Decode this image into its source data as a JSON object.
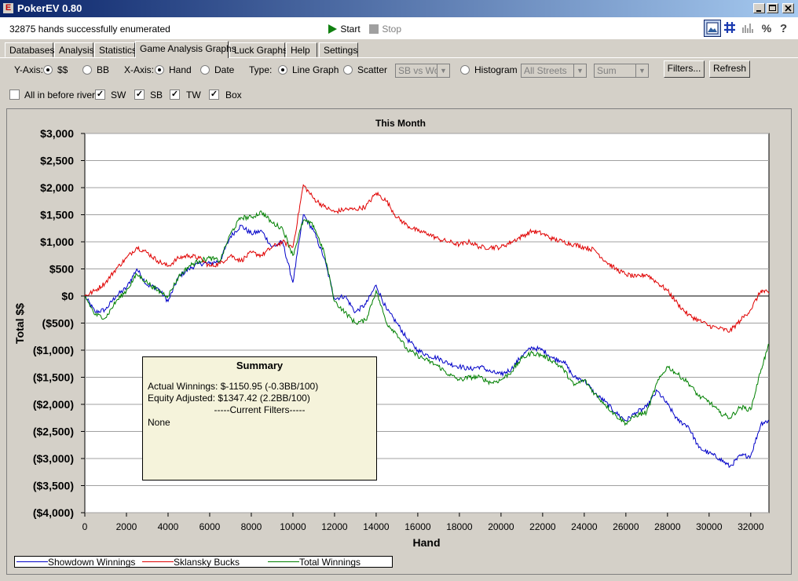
{
  "window": {
    "title": "PokerEV 0.80",
    "icon_letter": "E"
  },
  "status": {
    "message": "32875 hands successfully enumerated"
  },
  "toolbar": {
    "start_label": "Start",
    "stop_label": "Stop"
  },
  "tabs": [
    {
      "label": "Databases",
      "active": false
    },
    {
      "label": "Analysis",
      "active": false
    },
    {
      "label": "Statistics",
      "active": false
    },
    {
      "label": "Game Analysis Graphs",
      "active": true
    },
    {
      "label": "Luck Graphs",
      "active": false
    },
    {
      "label": "Help",
      "active": false
    },
    {
      "label": "Settings",
      "active": false
    }
  ],
  "controls": {
    "yaxis_label": "Y-Axis:",
    "yaxis_dollars": "$$",
    "yaxis_bb": "BB",
    "xaxis_label": "X-Axis:",
    "xaxis_hand": "Hand",
    "xaxis_date": "Date",
    "type_label": "Type:",
    "type_line": "Line Graph",
    "type_scatter": "Scatter",
    "scatter_combo": "SB vs Wo",
    "type_histogram": "Histogram",
    "streets_combo": "All Streets",
    "sum_combo": "Sum",
    "filters_button": "Filters...",
    "refresh_button": "Refresh",
    "allin_label": "All in before river",
    "sw_label": "SW",
    "sb_label": "SB",
    "tw_label": "TW",
    "box_label": "Box"
  },
  "summary": {
    "heading": "Summary",
    "actual": "Actual Winnings: $-1150.95 (-0.3BB/100)",
    "equity": "Equity Adjusted: $1347.42 (2.2BB/100)",
    "filters_heading": "-----Current Filters-----",
    "filters_value": "None"
  },
  "chart_data": {
    "type": "line",
    "title": "This Month",
    "xlabel": "Hand",
    "ylabel": "Total $$",
    "xlim": [
      0,
      32875
    ],
    "ylim": [
      -4000,
      3000
    ],
    "x_ticks": [
      0,
      2000,
      4000,
      6000,
      8000,
      10000,
      12000,
      14000,
      16000,
      18000,
      20000,
      22000,
      24000,
      26000,
      28000,
      30000,
      32000
    ],
    "y_ticks": [
      3000,
      2500,
      2000,
      1500,
      1000,
      500,
      0,
      -500,
      -1000,
      -1500,
      -2000,
      -2500,
      -3000,
      -3500,
      -4000
    ],
    "y_tick_labels": [
      "$3,000",
      "$2,500",
      "$2,000",
      "$1,500",
      "$1,000",
      "$500",
      "$0",
      "($500)",
      "($1,000)",
      "($1,500)",
      "($2,000)",
      "($2,500)",
      "($3,000)",
      "($3,500)",
      "($4,000)"
    ],
    "grid": true,
    "legend_position": "bottom",
    "series": [
      {
        "name": "Showdown Winnings",
        "color": "#0000c8",
        "x": [
          0,
          500,
          1000,
          1500,
          2000,
          2500,
          3000,
          3500,
          4000,
          4500,
          5000,
          5500,
          6000,
          6500,
          7000,
          7500,
          8000,
          8500,
          9000,
          9500,
          10000,
          10500,
          11000,
          11500,
          12000,
          12500,
          13000,
          13500,
          14000,
          14500,
          15000,
          15500,
          16000,
          16500,
          17000,
          17500,
          18000,
          18500,
          19000,
          19500,
          20000,
          20500,
          21000,
          21500,
          22000,
          22500,
          23000,
          23500,
          24000,
          24500,
          25000,
          25500,
          26000,
          26500,
          27000,
          27500,
          28000,
          28500,
          29000,
          29500,
          30000,
          30500,
          31000,
          31500,
          32000,
          32500,
          32875
        ],
        "y": [
          0,
          -300,
          -250,
          0,
          150,
          500,
          200,
          150,
          -100,
          350,
          500,
          600,
          600,
          650,
          1100,
          1300,
          1150,
          1200,
          900,
          1000,
          250,
          1500,
          1200,
          700,
          -50,
          0,
          -300,
          -150,
          200,
          -250,
          -500,
          -800,
          -1000,
          -1100,
          -1150,
          -1250,
          -1300,
          -1350,
          -1300,
          -1400,
          -1450,
          -1350,
          -1100,
          -950,
          -1000,
          -1150,
          -1200,
          -1500,
          -1550,
          -1800,
          -1950,
          -2150,
          -2300,
          -2150,
          -2050,
          -1750,
          -2000,
          -2300,
          -2400,
          -2800,
          -2900,
          -3000,
          -3150,
          -2950,
          -2950,
          -2350,
          -2300
        ]
      },
      {
        "name": "Sklansky Bucks",
        "color": "#e00000",
        "x": [
          0,
          500,
          1000,
          1500,
          2000,
          2500,
          3000,
          3500,
          4000,
          4500,
          5000,
          5500,
          6000,
          6500,
          7000,
          7500,
          8000,
          8500,
          9000,
          9500,
          10000,
          10500,
          11000,
          11500,
          12000,
          12500,
          13000,
          13500,
          14000,
          14500,
          15000,
          15500,
          16000,
          16500,
          17000,
          17500,
          18000,
          18500,
          19000,
          19500,
          20000,
          20500,
          21000,
          21500,
          22000,
          22500,
          23000,
          23500,
          24000,
          24500,
          25000,
          25500,
          26000,
          26500,
          27000,
          27500,
          28000,
          28500,
          29000,
          29500,
          30000,
          30500,
          31000,
          31500,
          32000,
          32500,
          32875
        ],
        "y": [
          0,
          100,
          250,
          500,
          700,
          900,
          800,
          650,
          550,
          700,
          750,
          700,
          550,
          600,
          750,
          650,
          800,
          750,
          900,
          1000,
          900,
          2050,
          1800,
          1650,
          1550,
          1600,
          1600,
          1650,
          1900,
          1750,
          1450,
          1300,
          1200,
          1150,
          1050,
          1000,
          950,
          1000,
          900,
          900,
          900,
          1000,
          1100,
          1200,
          1150,
          1050,
          1000,
          950,
          900,
          850,
          650,
          500,
          400,
          350,
          400,
          250,
          100,
          -150,
          -350,
          -450,
          -550,
          -600,
          -650,
          -450,
          -250,
          100,
          50
        ]
      },
      {
        "name": "Total Winnings",
        "color": "#008000",
        "x": [
          0,
          500,
          1000,
          1500,
          2000,
          2500,
          3000,
          3500,
          4000,
          4500,
          5000,
          5500,
          6000,
          6500,
          7000,
          7500,
          8000,
          8500,
          9000,
          9500,
          10000,
          10500,
          11000,
          11500,
          12000,
          12500,
          13000,
          13500,
          14000,
          14500,
          15000,
          15500,
          16000,
          16500,
          17000,
          17500,
          18000,
          18500,
          19000,
          19500,
          20000,
          20500,
          21000,
          21500,
          22000,
          22500,
          23000,
          23500,
          24000,
          24500,
          25000,
          25500,
          26000,
          26500,
          27000,
          27500,
          28000,
          28500,
          29000,
          29500,
          30000,
          30500,
          31000,
          31500,
          32000,
          32500,
          32875
        ],
        "y": [
          0,
          -350,
          -400,
          -100,
          100,
          400,
          250,
          100,
          0,
          350,
          550,
          650,
          700,
          650,
          1150,
          1450,
          1450,
          1550,
          1350,
          1250,
          750,
          1400,
          1300,
          800,
          -100,
          -300,
          -500,
          -450,
          100,
          -500,
          -700,
          -1000,
          -1100,
          -1200,
          -1300,
          -1450,
          -1550,
          -1500,
          -1500,
          -1600,
          -1550,
          -1400,
          -1150,
          -1050,
          -1100,
          -1200,
          -1350,
          -1650,
          -1550,
          -1800,
          -2000,
          -2200,
          -2350,
          -2200,
          -2150,
          -1600,
          -1300,
          -1450,
          -1600,
          -1850,
          -1950,
          -2150,
          -2250,
          -2050,
          -2100,
          -1350,
          -900
        ]
      }
    ]
  }
}
